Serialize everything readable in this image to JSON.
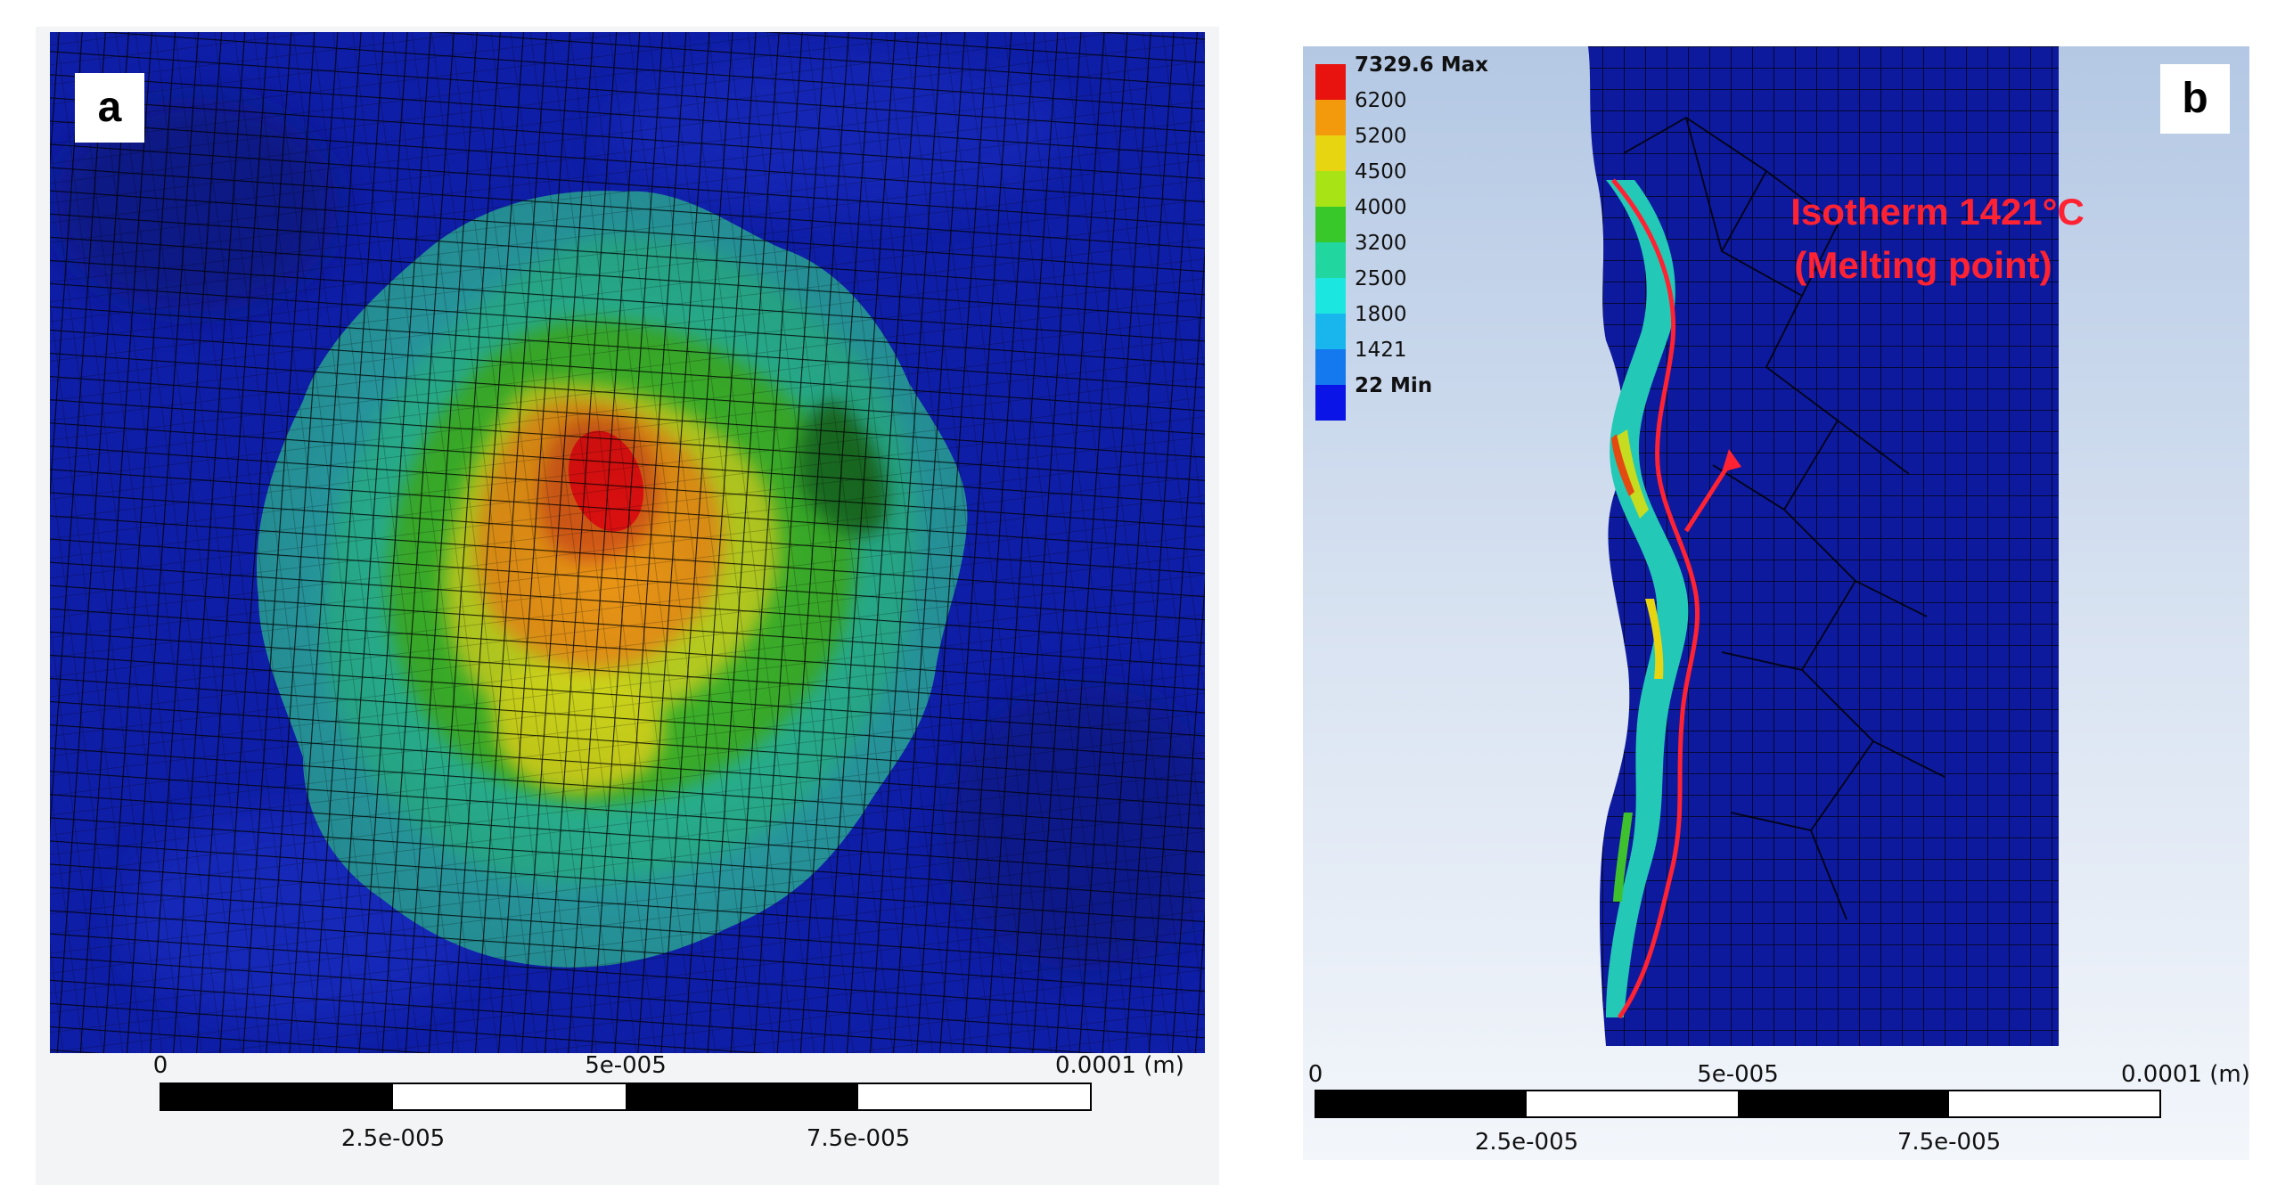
{
  "panel_a": {
    "label": "a",
    "scale_bar": {
      "top_labels": [
        "0",
        "5e-005",
        "0.0001 (m)"
      ],
      "bottom_labels": [
        "2.5e-005",
        "7.5e-005"
      ]
    }
  },
  "panel_b": {
    "label": "b",
    "legend": [
      {
        "label": "7329.6 Max",
        "color": "#e8120e",
        "bold": true
      },
      {
        "label": "6200",
        "color": "#f29a0c",
        "bold": false
      },
      {
        "label": "5200",
        "color": "#e8d512",
        "bold": false
      },
      {
        "label": "4500",
        "color": "#a8e316",
        "bold": false
      },
      {
        "label": "4000",
        "color": "#38c82a",
        "bold": false
      },
      {
        "label": "3200",
        "color": "#22d6a0",
        "bold": false
      },
      {
        "label": "2500",
        "color": "#1ce6e0",
        "bold": false
      },
      {
        "label": "1800",
        "color": "#18b6ec",
        "bold": false
      },
      {
        "label": "1421",
        "color": "#1478ee",
        "bold": false
      },
      {
        "label": "22 Min",
        "color": "#0a14e6",
        "bold": true
      }
    ],
    "annotation": {
      "line1": "Isotherm 1421°C",
      "line2": "(Melting point)",
      "color": "#ff2233"
    },
    "scale_bar": {
      "top_labels": [
        "0",
        "5e-005",
        "0.0001 (m)"
      ],
      "bottom_labels": [
        "2.5e-005",
        "7.5e-005"
      ]
    }
  }
}
